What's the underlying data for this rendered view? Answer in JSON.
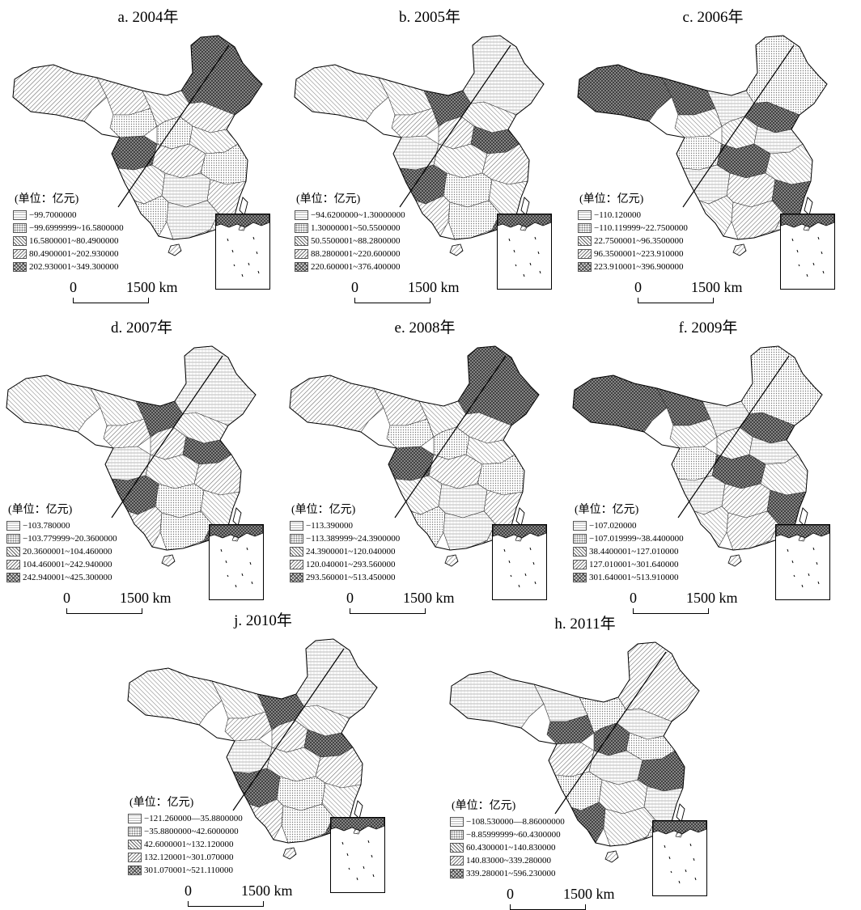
{
  "legend_title": "(单位：亿元)",
  "scale": {
    "zero": "0",
    "max": "1500 km"
  },
  "panels": [
    {
      "title": "a. 2004年",
      "legend": [
        "−99.7000000",
        "−99.6999999~16.5800000",
        "16.5800001~80.4900000",
        "80.4900001~202.930000",
        "202.930001~349.300000"
      ]
    },
    {
      "title": "b. 2005年",
      "legend": [
        "−94.6200000~1.30000000",
        "1.30000001~50.5500000",
        "50.5500001~88.2800000",
        "88.2800001~220.600000",
        "220.600001~376.400000"
      ]
    },
    {
      "title": "c. 2006年",
      "legend": [
        "−110.120000",
        "−110.119999~22.7500000",
        "22.7500001~96.3500000",
        "96.3500001~223.910000",
        "223.910001~396.900000"
      ]
    },
    {
      "title": "d. 2007年",
      "legend": [
        "−103.780000",
        "−103.779999~20.3600000",
        "20.3600001~104.460000",
        "104.460001~242.940000",
        "242.940001~425.300000"
      ]
    },
    {
      "title": "e. 2008年",
      "legend": [
        "−113.390000",
        "−113.389999~24.3900000",
        "24.3900001~120.040000",
        "120.040001~293.560000",
        "293.560001~513.450000"
      ]
    },
    {
      "title": "f. 2009年",
      "legend": [
        "−107.020000",
        "−107.019999~38.4400000",
        "38.4400001~127.010000",
        "127.010001~301.640000",
        "301.640001~513.910000"
      ]
    },
    {
      "title": "j. 2010年",
      "legend": [
        "−121.260000—35.8800000",
        "−35.8800000~42.6000000",
        "42.6000001~132.120000",
        "132.120001~301.070000",
        "301.070001~521.110000"
      ]
    },
    {
      "title": "h. 2011年",
      "legend": [
        "−108.530000—8.86000000",
        "−8.85999999~60.4300000",
        "60.4300001~140.830000",
        "140.83000~339.280000",
        "339.280001~596.230000"
      ]
    }
  ],
  "class_fills": [
    "pat-1",
    "pat-2",
    "pat-3",
    "pat-4",
    "pat-5"
  ]
}
